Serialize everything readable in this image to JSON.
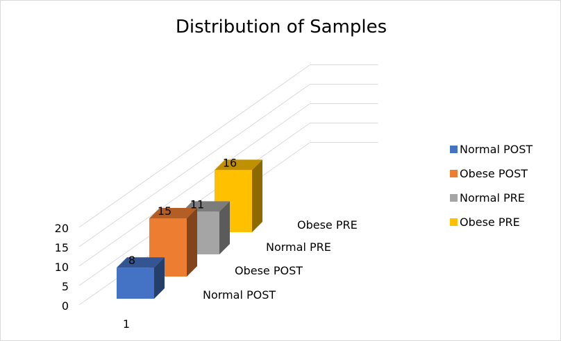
{
  "chart_data": {
    "type": "bar",
    "title": "Distribution of Samples",
    "x_categories": [
      "1"
    ],
    "depth_categories": [
      "Normal POST",
      "Obese POST",
      "Normal PRE",
      "Obese PRE"
    ],
    "series": [
      {
        "name": "Normal POST",
        "values": [
          8
        ],
        "color": "#4472C4"
      },
      {
        "name": "Obese POST",
        "values": [
          15
        ],
        "color": "#ED7D31"
      },
      {
        "name": "Normal PRE",
        "values": [
          11
        ],
        "color": "#A5A5A5"
      },
      {
        "name": "Obese PRE",
        "values": [
          16
        ],
        "color": "#FFC000"
      }
    ],
    "ylim": [
      0,
      20
    ],
    "yticks": [
      0,
      5,
      10,
      15,
      20
    ],
    "grid": true,
    "legend_position": "right",
    "is_3d": true
  }
}
